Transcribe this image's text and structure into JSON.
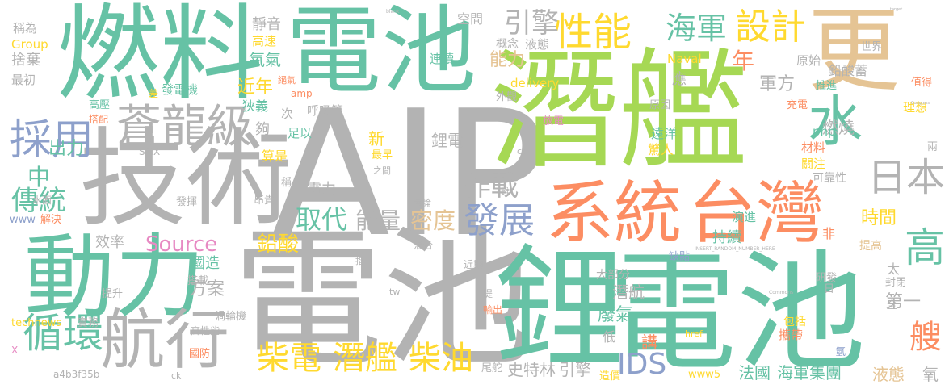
{
  "palette": {
    "teal": "#66c2a5",
    "orange": "#fc8d62",
    "blue": "#8da0cb",
    "pink": "#e78ac3",
    "green": "#a6d854",
    "yellow": "#ffd92f",
    "tan": "#e5c494",
    "gray": "#b3b3b3"
  },
  "words": [
    {
      "text": "AIP",
      "color": "gray"
    },
    {
      "text": "潛艦",
      "color": "green"
    },
    {
      "text": "電池",
      "color": "gray"
    },
    {
      "text": "電池",
      "color": "teal"
    },
    {
      "text": "電池",
      "color": "teal"
    },
    {
      "text": "燃料",
      "color": "teal"
    },
    {
      "text": "技術",
      "color": "gray"
    },
    {
      "text": "鋰",
      "color": "teal"
    },
    {
      "text": "動力",
      "color": "teal"
    },
    {
      "text": "系統",
      "color": "orange"
    },
    {
      "text": "台灣",
      "color": "orange"
    },
    {
      "text": "更",
      "color": "tan"
    },
    {
      "text": "水",
      "color": "teal"
    },
    {
      "text": "蒼龍級",
      "color": "gray"
    },
    {
      "text": "航行",
      "color": "gray"
    },
    {
      "text": "循環",
      "color": "teal"
    },
    {
      "text": "採用",
      "color": "blue"
    },
    {
      "text": "性能",
      "color": "yellow"
    },
    {
      "text": "設計",
      "color": "yellow"
    },
    {
      "text": "日本",
      "color": "gray"
    },
    {
      "text": "發展",
      "color": "blue"
    },
    {
      "text": "海軍",
      "color": "teal"
    },
    {
      "text": "高",
      "color": "teal"
    },
    {
      "text": "柴電",
      "color": "yellow"
    },
    {
      "text": "潛艦",
      "color": "yellow"
    },
    {
      "text": "柴油",
      "color": "yellow"
    },
    {
      "text": "IDS",
      "color": "blue"
    },
    {
      "text": "取代",
      "color": "teal"
    },
    {
      "text": "作戰",
      "color": "gray"
    },
    {
      "text": "傳統",
      "color": "teal"
    },
    {
      "text": "引擎",
      "color": "gray"
    },
    {
      "text": "Source",
      "color": "pink"
    },
    {
      "text": "能量",
      "color": "gray"
    },
    {
      "text": "密度",
      "color": "tan"
    },
    {
      "text": "鉛酸",
      "color": "yellow"
    },
    {
      "text": "艘",
      "color": "orange"
    },
    {
      "text": "年",
      "color": "orange"
    },
    {
      "text": "軍方",
      "color": "gray"
    },
    {
      "text": "燃燒",
      "color": "gray"
    },
    {
      "text": "中",
      "color": "teal"
    },
    {
      "text": "出力",
      "color": "teal"
    },
    {
      "text": "近年",
      "color": "yellow"
    },
    {
      "text": "能力",
      "color": "tan"
    },
    {
      "text": "時間",
      "color": "yellow"
    },
    {
      "text": "鋰電",
      "color": "gray"
    },
    {
      "text": "新",
      "color": "yellow"
    },
    {
      "text": "電力",
      "color": "gray"
    },
    {
      "text": "方案",
      "color": "gray"
    },
    {
      "text": "國造",
      "color": "teal"
    },
    {
      "text": "潛航",
      "color": "gray"
    },
    {
      "text": "廢氣",
      "color": "teal"
    },
    {
      "text": "講",
      "color": "orange"
    },
    {
      "text": "第一",
      "color": "gray"
    },
    {
      "text": "持續",
      "color": "teal"
    },
    {
      "text": "法國",
      "color": "teal"
    },
    {
      "text": "海軍集團",
      "color": "teal"
    },
    {
      "text": "史特林",
      "color": "gray"
    },
    {
      "text": "引擎",
      "color": "gray"
    },
    {
      "text": "液態",
      "color": "tan"
    },
    {
      "text": "氧",
      "color": "gray"
    },
    {
      "text": "效率",
      "color": "gray"
    },
    {
      "text": "靜音",
      "color": "gray"
    },
    {
      "text": "高速",
      "color": "yellow"
    },
    {
      "text": "氧氣",
      "color": "teal"
    },
    {
      "text": "稱為",
      "color": "gray"
    },
    {
      "text": "Group",
      "color": "yellow"
    },
    {
      "text": "捨棄",
      "color": "gray"
    },
    {
      "text": "最初",
      "color": "gray"
    },
    {
      "text": "發電機",
      "color": "teal"
    },
    {
      "text": "高壓",
      "color": "teal"
    },
    {
      "text": "搭配",
      "color": "orange"
    },
    {
      "text": "狹義",
      "color": "teal"
    },
    {
      "text": "呼吸管",
      "color": "gray"
    },
    {
      "text": "足以",
      "color": "teal"
    },
    {
      "text": "夠",
      "color": "gray"
    },
    {
      "text": "次",
      "color": "gray"
    },
    {
      "text": "算是",
      "color": "yellow"
    },
    {
      "text": "最早",
      "color": "yellow"
    },
    {
      "text": "空間",
      "color": "gray"
    },
    {
      "text": "概念",
      "color": "gray"
    },
    {
      "text": "液態",
      "color": "gray"
    },
    {
      "text": "連續",
      "color": "teal"
    },
    {
      "text": "Naval",
      "color": "yellow"
    },
    {
      "text": "delivery",
      "color": "yellow"
    },
    {
      "text": "外觀",
      "color": "gray"
    },
    {
      "text": "放電",
      "color": "pink"
    },
    {
      "text": "應",
      "color": "gray"
    },
    {
      "text": "原因",
      "color": "gray"
    },
    {
      "text": "遠洋",
      "color": "teal"
    },
    {
      "text": "驚人",
      "color": "yellow"
    },
    {
      "text": "原始",
      "color": "gray"
    },
    {
      "text": "鉛酸蓄",
      "color": "gray"
    },
    {
      "text": "推進",
      "color": "teal"
    },
    {
      "text": "充電",
      "color": "orange"
    },
    {
      "text": "理想",
      "color": "yellow"
    },
    {
      "text": "php",
      "color": "teal"
    },
    {
      "text": "材料",
      "color": "orange"
    },
    {
      "text": "關注",
      "color": "yellow"
    },
    {
      "text": "可靠性",
      "color": "gray"
    },
    {
      "text": "世界",
      "color": "gray"
    },
    {
      "text": "值得",
      "color": "orange"
    },
    {
      "text": "兩",
      "color": "gray"
    },
    {
      "text": "演進",
      "color": "teal"
    },
    {
      "text": "非",
      "color": "orange"
    },
    {
      "text": "提高",
      "color": "tan"
    },
    {
      "text": "太",
      "color": "gray"
    },
    {
      "text": "缺點",
      "color": "blue"
    },
    {
      "text": "研發",
      "color": "gray"
    },
    {
      "text": "封閉",
      "color": "gray"
    },
    {
      "text": "日",
      "color": "gray"
    },
    {
      "text": "包括",
      "color": "yellow"
    },
    {
      "text": "攜帶",
      "color": "orange"
    },
    {
      "text": "全",
      "color": "gray"
    },
    {
      "text": "氫",
      "color": "blue"
    },
    {
      "text": "大部分",
      "color": "gray"
    },
    {
      "text": "低",
      "color": "gray"
    },
    {
      "text": "造價",
      "color": "yellow"
    },
    {
      "text": "尾舵",
      "color": "gray"
    },
    {
      "text": "www5",
      "color": "yellow"
    },
    {
      "text": "水面",
      "color": "gray"
    },
    {
      "text": "解決",
      "color": "orange"
    },
    {
      "text": "www",
      "color": "blue"
    },
    {
      "text": "發揮",
      "color": "gray"
    },
    {
      "text": "提升",
      "color": "gray"
    },
    {
      "text": "搭載",
      "color": "gray"
    },
    {
      "text": "實務",
      "color": "gray"
    },
    {
      "text": "technews",
      "color": "yellow"
    },
    {
      "text": "高性能",
      "color": "gray"
    },
    {
      "text": "渦輪機",
      "color": "gray"
    },
    {
      "text": "國防",
      "color": "orange"
    },
    {
      "text": "a4b3f35b",
      "color": "gray"
    },
    {
      "text": "稱",
      "color": "gray"
    },
    {
      "text": "昂貴",
      "color": "gray"
    },
    {
      "text": "混合",
      "color": "gray"
    },
    {
      "text": "輸出",
      "color": "orange"
    },
    {
      "text": "近期",
      "color": "gray"
    },
    {
      "text": "SMX",
      "color": "gray"
    },
    {
      "text": "amp",
      "color": "orange"
    },
    {
      "text": "差",
      "color": "yellow"
    },
    {
      "text": "興論",
      "color": "gray"
    },
    {
      "text": "難",
      "color": "gray"
    },
    {
      "text": "tw",
      "color": "gray"
    },
    {
      "text": "href",
      "color": "yellow"
    },
    {
      "text": "提",
      "color": "gray"
    },
    {
      "text": "指",
      "color": "gray"
    },
    {
      "text": "ck",
      "color": "gray"
    },
    {
      "text": "cb",
      "color": "gray"
    },
    {
      "text": "之間",
      "color": "gray"
    },
    {
      "text": "絕氣",
      "color": "orange"
    },
    {
      "text": "X",
      "color": "pink"
    },
    {
      "text": "INSERT_RANDOM_NUMBER_HERE",
      "color": "gray"
    },
    {
      "text": "Commons",
      "color": "gray"
    },
    {
      "text": "Congress",
      "color": "gray"
    },
    {
      "text": "target",
      "color": "gray"
    },
    {
      "text": "blank",
      "color": "gray"
    },
    {
      "text": "a",
      "color": "gray"
    }
  ]
}
